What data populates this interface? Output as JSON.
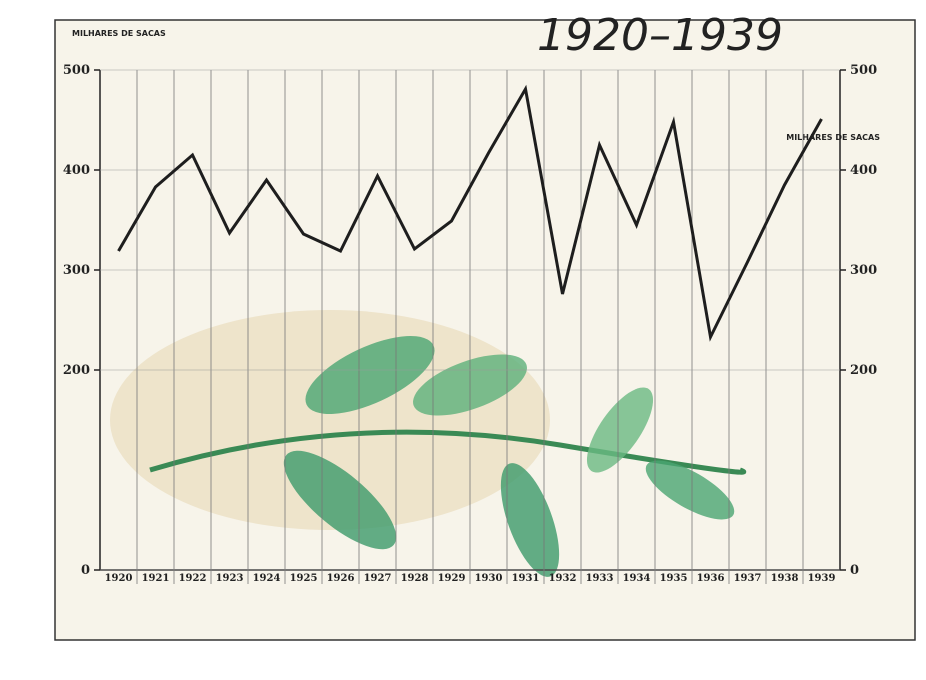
{
  "chart_data": {
    "type": "line",
    "title": "1920–1939",
    "y_label": "MILHARES DE SACAS",
    "y2_label": "MILHARES DE SACAS",
    "categories": [
      "1920",
      "1921",
      "1922",
      "1923",
      "1924",
      "1925",
      "1926",
      "1927",
      "1928",
      "1929",
      "1930",
      "1931",
      "1932",
      "1933",
      "1934",
      "1935",
      "1936",
      "1937",
      "1938",
      "1939"
    ],
    "series": [
      {
        "color": "#1e1e1e",
        "values": [
          319,
          383,
          415,
          337,
          390,
          336,
          319,
          394,
          321,
          349,
          417,
          481,
          276,
          425,
          345,
          448,
          233,
          308,
          385,
          451
        ]
      }
    ],
    "ylim": [
      0,
      500
    ],
    "yticks": [
      0,
      200,
      300,
      400,
      500
    ],
    "y2lim": [
      0,
      500
    ],
    "y2ticks": [
      0,
      200,
      300,
      400,
      500
    ],
    "grid": true
  }
}
